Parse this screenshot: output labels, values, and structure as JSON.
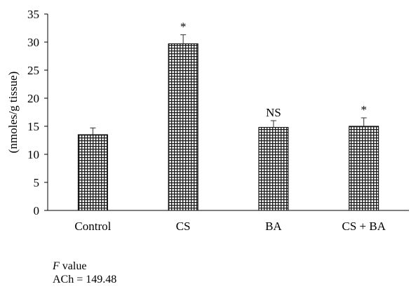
{
  "chart_data": {
    "type": "bar",
    "categories": [
      "Control",
      "CS",
      "BA",
      "CS + BA"
    ],
    "values": [
      13.5,
      29.7,
      14.8,
      15.0
    ],
    "errors": [
      1.2,
      1.6,
      1.2,
      1.5
    ],
    "annotations": [
      "",
      "*",
      "NS",
      "*"
    ],
    "title": "",
    "xlabel": "",
    "ylabel": "(nmoles/g tissue)",
    "ylim": [
      0,
      35
    ],
    "yticks": [
      0,
      5,
      10,
      15,
      20,
      25,
      30,
      35
    ],
    "grid": false,
    "legend": "none",
    "bar_fill": "checkered-grid",
    "bar_color": "#000000"
  },
  "footer": {
    "f_italic": "F",
    "f_rest": " value",
    "stat": "ACh = 149.48"
  }
}
